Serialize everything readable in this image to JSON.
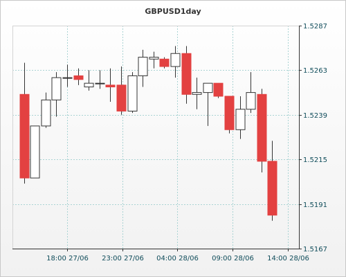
{
  "chart_data": {
    "type": "candlestick",
    "title": "GBPUSD1day",
    "ylim": [
      1.5167,
      1.5287
    ],
    "y_ticks": [
      "1.5287",
      "1.5263",
      "1.5239",
      "1.5215",
      "1.5191",
      "1.5167"
    ],
    "x_ticks": [
      "18:00 27/06",
      "23:00 27/06",
      "04:00 28/06",
      "09:00 28/06",
      "14:00 28/06"
    ],
    "grid": true,
    "colors": {
      "up_body": "#ffffff",
      "down_body": "#e34141",
      "wick": "#333333",
      "grid": "#a9d3d3",
      "axis": "#333333",
      "tick_text": "#0f4c5a"
    },
    "candles": [
      {
        "open": 1.525,
        "high": 1.5267,
        "low": 1.5202,
        "close": 1.5205
      },
      {
        "open": 1.5205,
        "high": 1.5233,
        "low": 1.5205,
        "close": 1.5233
      },
      {
        "open": 1.5233,
        "high": 1.5251,
        "low": 1.5232,
        "close": 1.5247
      },
      {
        "open": 1.5247,
        "high": 1.5262,
        "low": 1.5238,
        "close": 1.5259
      },
      {
        "open": 1.5259,
        "high": 1.5266,
        "low": 1.5254,
        "close": 1.5259
      },
      {
        "open": 1.526,
        "high": 1.5264,
        "low": 1.5255,
        "close": 1.5258
      },
      {
        "open": 1.5254,
        "high": 1.5263,
        "low": 1.5252,
        "close": 1.5256
      },
      {
        "open": 1.5256,
        "high": 1.5263,
        "low": 1.5253,
        "close": 1.5256
      },
      {
        "open": 1.5255,
        "high": 1.5264,
        "low": 1.5246,
        "close": 1.5254
      },
      {
        "open": 1.5255,
        "high": 1.5265,
        "low": 1.5239,
        "close": 1.5241
      },
      {
        "open": 1.5241,
        "high": 1.5262,
        "low": 1.524,
        "close": 1.526
      },
      {
        "open": 1.526,
        "high": 1.5274,
        "low": 1.5254,
        "close": 1.527
      },
      {
        "open": 1.5269,
        "high": 1.5273,
        "low": 1.5264,
        "close": 1.527
      },
      {
        "open": 1.5269,
        "high": 1.527,
        "low": 1.5264,
        "close": 1.5265
      },
      {
        "open": 1.5265,
        "high": 1.5276,
        "low": 1.5259,
        "close": 1.5272
      },
      {
        "open": 1.5272,
        "high": 1.5276,
        "low": 1.5245,
        "close": 1.525
      },
      {
        "open": 1.525,
        "high": 1.5259,
        "low": 1.5242,
        "close": 1.5251
      },
      {
        "open": 1.5251,
        "high": 1.5256,
        "low": 1.5233,
        "close": 1.5256
      },
      {
        "open": 1.5256,
        "high": 1.5256,
        "low": 1.5248,
        "close": 1.5249
      },
      {
        "open": 1.5249,
        "high": 1.5249,
        "low": 1.5229,
        "close": 1.5231
      },
      {
        "open": 1.5231,
        "high": 1.5249,
        "low": 1.5226,
        "close": 1.5242
      },
      {
        "open": 1.5242,
        "high": 1.5262,
        "low": 1.524,
        "close": 1.5251
      },
      {
        "open": 1.525,
        "high": 1.5253,
        "low": 1.5208,
        "close": 1.5214
      },
      {
        "open": 1.5214,
        "high": 1.5225,
        "low": 1.5182,
        "close": 1.5185
      }
    ]
  }
}
